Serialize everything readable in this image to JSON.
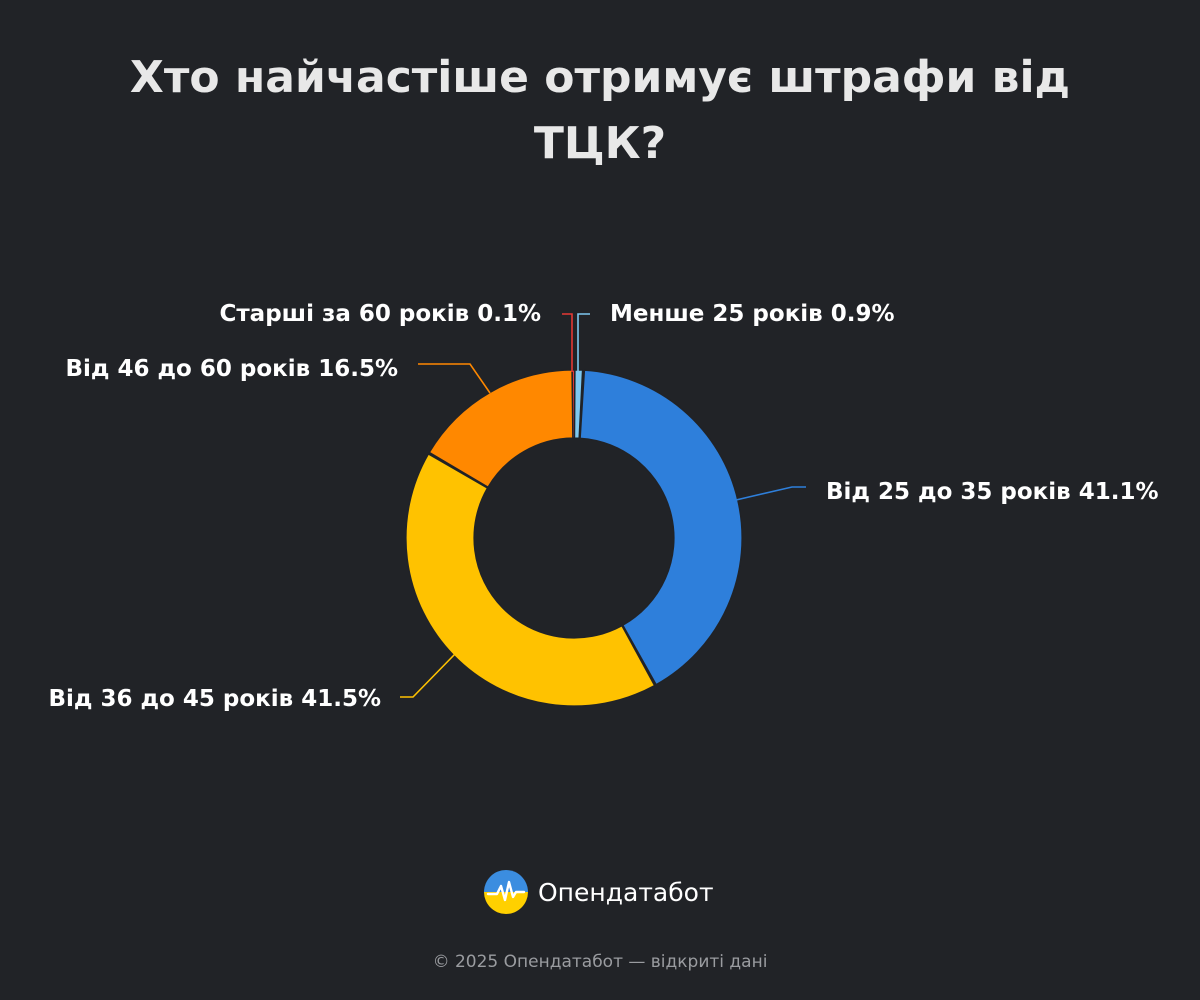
{
  "title": "Хто найчастіше отримує штрафи від ТЦК?",
  "brand": {
    "name": "Опендатабот",
    "logo_icon": "opendatabot-logo-icon"
  },
  "footer": "© 2025 Опендатабот — відкриті дані",
  "colors": {
    "background": "#212327",
    "under_25": "#7ec8f0",
    "from_25_to_35": "#2e7fdb",
    "from_36_to_45": "#ffc200",
    "from_46_to_60": "#ff8800",
    "over_60": "#e53935"
  },
  "chart_data": {
    "type": "pie",
    "subtype": "donut",
    "title": "Хто найчастіше отримує штрафи від ТЦК?",
    "unit": "%",
    "slices": [
      {
        "label": "Менше 25 років",
        "value": 0.9,
        "display": "Менше 25 років 0.9%",
        "color": "#7ec8f0"
      },
      {
        "label": "Від 25 до 35 років",
        "value": 41.1,
        "display": "Від 25 до 35 років 41.1%",
        "color": "#2e7fdb"
      },
      {
        "label": "Від 36 до 45 років",
        "value": 41.5,
        "display": "Від 36 до 45 років 41.5%",
        "color": "#ffc200"
      },
      {
        "label": "Від 46 до 60 років",
        "value": 16.5,
        "display": "Від 46 до 60 років 16.5%",
        "color": "#ff8800"
      },
      {
        "label": "Старші за 60 років",
        "value": 0.1,
        "display": "Старші за 60 років 0.1%",
        "color": "#e53935"
      }
    ]
  }
}
